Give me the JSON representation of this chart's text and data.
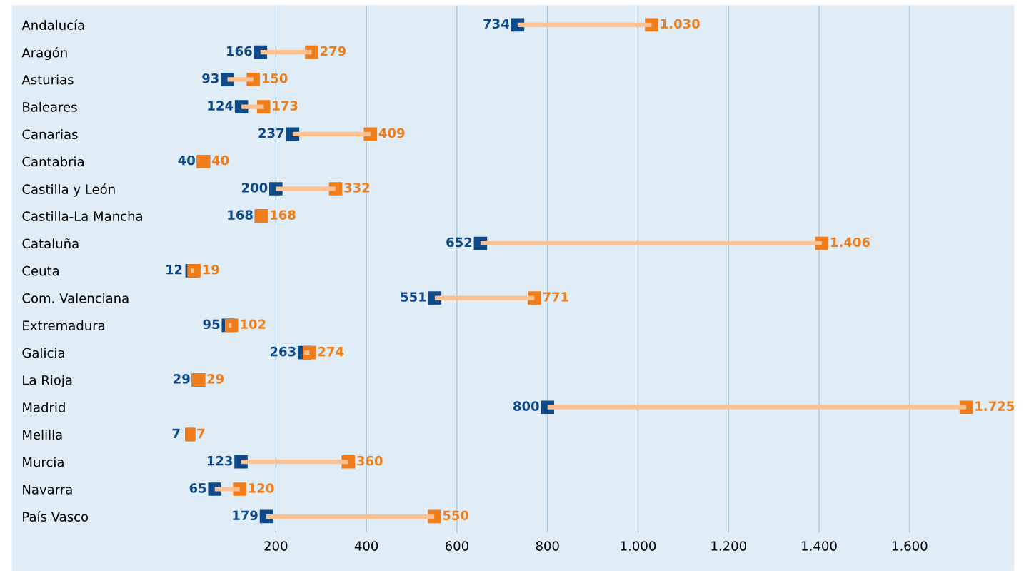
{
  "chart_data": {
    "type": "bar",
    "orientation": "horizontal",
    "categories": [
      "Andalucía",
      "Aragón",
      "Asturias",
      "Baleares",
      "Canarias",
      "Cantabria",
      "Castilla y León",
      "Castilla-La Mancha",
      "Cataluña",
      "Ceuta",
      "Com. Valenciana",
      "Extremadura",
      "Galicia",
      "La Rioja",
      "Madrid",
      "Melilla",
      "Murcia",
      "Navarra",
      "País Vasco"
    ],
    "series": [
      {
        "color": "#fdc08e",
        "base": [
          734,
          166,
          93,
          124,
          237,
          null,
          200,
          null,
          652,
          12,
          551,
          95,
          263,
          null,
          800,
          null,
          123,
          65,
          179
        ],
        "values": [
          296,
          113,
          57,
          49,
          172,
          null,
          132,
          null,
          754,
          7,
          220,
          7,
          11,
          null,
          925,
          null,
          237,
          55,
          371
        ]
      },
      {
        "type": "scatter",
        "color": "#0d4a8a",
        "values": [
          734,
          166,
          93,
          124,
          237,
          40,
          200,
          168,
          652,
          12,
          551,
          95,
          263,
          29,
          800,
          7,
          123,
          65,
          179
        ],
        "value_labels": [
          "734",
          "166",
          "93",
          "124",
          "237",
          "40",
          "200",
          "168",
          "652",
          "12",
          "551",
          "95",
          "263",
          "29",
          "800",
          "7",
          "123",
          "65",
          "179"
        ]
      },
      {
        "type": "scatter",
        "color": "#f07d1a",
        "values": [
          1030,
          279,
          150,
          173,
          409,
          40,
          332,
          168,
          1406,
          19,
          771,
          102,
          274,
          29,
          1725,
          7,
          360,
          120,
          550
        ],
        "value_labels": [
          "1.030",
          "279",
          "150",
          "173",
          "409",
          "40",
          "332",
          "168",
          "1.406",
          "19",
          "771",
          "102",
          "274",
          "29",
          "1.725",
          "7",
          "360",
          "120",
          "550"
        ]
      }
    ],
    "xlim": [
      0,
      1830
    ],
    "xticks": [
      200,
      400,
      600,
      {
        "value": 800,
        "label": "800"
      },
      {
        "value": 1000,
        "label": "1.000"
      },
      {
        "value": 1200,
        "label": "1.200"
      },
      {
        "value": 1400,
        "label": "1.400"
      },
      {
        "value": 1600,
        "label": "1.600"
      }
    ],
    "grid": "x",
    "marker": "square"
  }
}
